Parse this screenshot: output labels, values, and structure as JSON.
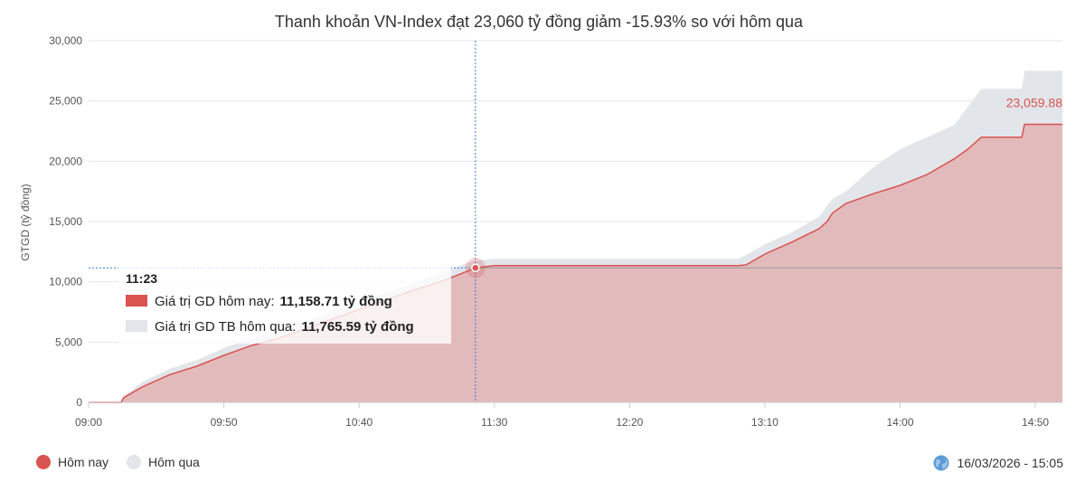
{
  "chart_data": {
    "type": "area",
    "title": "Thanh khoản VN-Index đạt 23,060 tỷ đồng giảm -15.93% so với hôm qua",
    "ylabel": "GTGD (tỷ đồng)",
    "xlabel": "",
    "ylim": [
      0,
      30000
    ],
    "y_ticks": [
      "0",
      "5,000",
      "10,000",
      "15,000",
      "20,000",
      "25,000",
      "30,000"
    ],
    "x_ticks": [
      "09:00",
      "09:50",
      "10:40",
      "11:30",
      "12:20",
      "13:10",
      "14:00",
      "14:50"
    ],
    "grid": true,
    "legend_position": "bottom-left",
    "series": [
      {
        "name": "Hôm nay",
        "color": "#d9534f",
        "fill": "#e2b3b4",
        "points": [
          [
            "09:00",
            0
          ],
          [
            "09:12",
            0
          ],
          [
            "09:13",
            400
          ],
          [
            "09:20",
            1300
          ],
          [
            "09:30",
            2300
          ],
          [
            "09:40",
            3000
          ],
          [
            "09:50",
            3900
          ],
          [
            "10:00",
            4700
          ],
          [
            "10:10",
            5300
          ],
          [
            "10:20",
            6100
          ],
          [
            "10:30",
            6900
          ],
          [
            "10:40",
            7700
          ],
          [
            "10:50",
            8500
          ],
          [
            "11:00",
            9300
          ],
          [
            "11:10",
            10000
          ],
          [
            "11:18",
            10700
          ],
          [
            "11:23",
            11158.71
          ],
          [
            "11:30",
            11350
          ],
          [
            "12:00",
            11350
          ],
          [
            "12:30",
            11350
          ],
          [
            "13:00",
            11350
          ],
          [
            "13:03",
            11400
          ],
          [
            "13:10",
            12300
          ],
          [
            "13:20",
            13300
          ],
          [
            "13:30",
            14400
          ],
          [
            "13:33",
            15000
          ],
          [
            "13:35",
            15700
          ],
          [
            "13:40",
            16500
          ],
          [
            "13:50",
            17300
          ],
          [
            "14:00",
            18000
          ],
          [
            "14:10",
            18900
          ],
          [
            "14:20",
            20200
          ],
          [
            "14:25",
            21000
          ],
          [
            "14:30",
            22000
          ],
          [
            "14:45",
            22000
          ],
          [
            "14:46",
            23059.88
          ],
          [
            "14:51",
            23059.88
          ],
          [
            "15:00",
            23059.88
          ]
        ]
      },
      {
        "name": "Hôm qua",
        "color": "#e2e5ea",
        "fill": "#e2e5ea",
        "points": [
          [
            "09:00",
            0
          ],
          [
            "09:12",
            0
          ],
          [
            "09:13",
            500
          ],
          [
            "09:20",
            1700
          ],
          [
            "09:30",
            2800
          ],
          [
            "09:40",
            3500
          ],
          [
            "09:50",
            4500
          ],
          [
            "10:00",
            5300
          ],
          [
            "10:10",
            6000
          ],
          [
            "10:20",
            6700
          ],
          [
            "10:30",
            7500
          ],
          [
            "10:40",
            8300
          ],
          [
            "10:50",
            9100
          ],
          [
            "11:00",
            9900
          ],
          [
            "11:10",
            10700
          ],
          [
            "11:18",
            11400
          ],
          [
            "11:23",
            11765.59
          ],
          [
            "11:30",
            11900
          ],
          [
            "12:00",
            11900
          ],
          [
            "12:30",
            11900
          ],
          [
            "13:00",
            11900
          ],
          [
            "13:03",
            12200
          ],
          [
            "13:10",
            13100
          ],
          [
            "13:20",
            14100
          ],
          [
            "13:30",
            15400
          ],
          [
            "13:33",
            16300
          ],
          [
            "13:35",
            16900
          ],
          [
            "13:40",
            17500
          ],
          [
            "13:50",
            19500
          ],
          [
            "14:00",
            21000
          ],
          [
            "14:10",
            22000
          ],
          [
            "14:20",
            23000
          ],
          [
            "14:25",
            24500
          ],
          [
            "14:30",
            26000
          ],
          [
            "14:45",
            26000
          ],
          [
            "14:46",
            27500
          ],
          [
            "14:51",
            27500
          ],
          [
            "15:00",
            27500
          ]
        ]
      }
    ],
    "last_value_label": "23,059.88",
    "crosshair_time": "11:23",
    "tooltip": {
      "time": "11:23",
      "rows": [
        {
          "label": "Giá trị GD hôm nay:",
          "value": "11,158.71 tỷ đồng",
          "color": "#d9534f"
        },
        {
          "label": "Giá trị GD TB hôm qua:",
          "value": "11,765.59 tỷ đồng",
          "color": "#e2e5ea"
        }
      ]
    }
  },
  "legend": {
    "items": [
      {
        "label": "Hôm nay",
        "color": "#d9534f"
      },
      {
        "label": "Hôm qua",
        "color": "#e2e5ea"
      }
    ]
  },
  "footer": {
    "timestamp": "16/03/2026 - 15:05",
    "icon": "globe-icon"
  }
}
